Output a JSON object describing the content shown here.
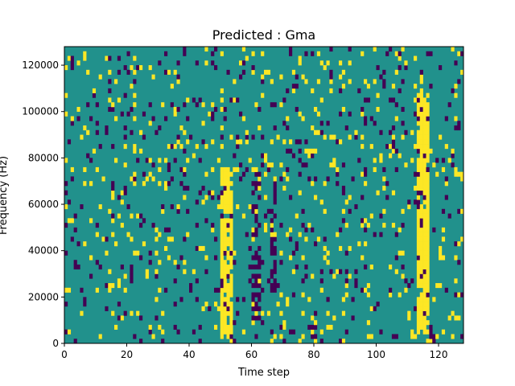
{
  "chart_data": {
    "type": "heatmap",
    "title": "Predicted : Gma",
    "xlabel": "Time step",
    "ylabel": "Frequency (Hz)",
    "xlim": [
      0,
      128
    ],
    "ylim": [
      0,
      128000
    ],
    "x_ticks": [
      0,
      20,
      40,
      60,
      80,
      100,
      120
    ],
    "y_ticks": [
      0,
      20000,
      40000,
      60000,
      80000,
      100000,
      120000
    ],
    "x_tick_labels": [
      "0",
      "20",
      "40",
      "60",
      "80",
      "100",
      "120"
    ],
    "y_tick_labels": [
      "0",
      "20000",
      "40000",
      "60000",
      "80000",
      "100000",
      "120000"
    ],
    "grid": false,
    "colormap": "viridis",
    "background_color": "#21918c",
    "levels": [
      {
        "value": -1,
        "color": "#440154"
      },
      {
        "value": 0,
        "color": "#21918c"
      },
      {
        "value": 1,
        "color": "#fde725"
      }
    ],
    "rows": 64,
    "cols": 128,
    "high_bands": [
      {
        "x_start": 50,
        "x_end": 54,
        "y_start": 2000,
        "y_end": 76000
      },
      {
        "x_start": 113,
        "x_end": 117,
        "y_start": 4000,
        "y_end": 108000
      }
    ],
    "low_bands": [
      {
        "x_start": 60,
        "x_end": 63,
        "y_start": 10000,
        "y_end": 76000
      },
      {
        "x_start": 66,
        "x_end": 68,
        "y_start": 22000,
        "y_end": 72000
      },
      {
        "x_start": 79,
        "x_end": 81,
        "y_start": 0,
        "y_end": 14000
      },
      {
        "x_start": 117,
        "x_end": 119,
        "y_start": 0,
        "y_end": 8000
      }
    ],
    "noise_density": 0.055
  }
}
